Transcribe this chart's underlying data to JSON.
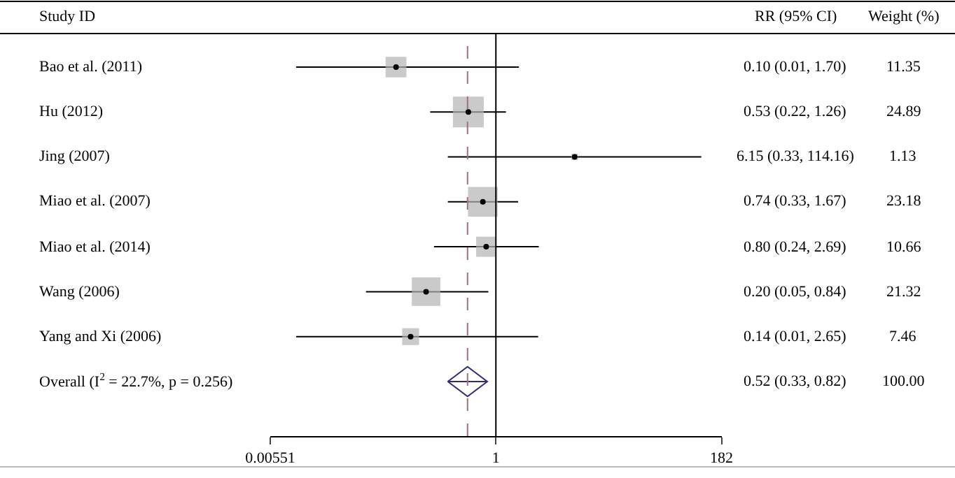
{
  "chart_data": {
    "type": "scatter",
    "orientation": "horizontal",
    "categories": [
      "Bao et al. (2011)",
      "Hu (2012)",
      "Jing (2007)",
      "Miao et al. (2007)",
      "Miao et al. (2014)",
      "Wang (2006)",
      "Yang and Xi (2006)",
      "Overall (I$^{2}$ = 22.7%, p = 0.256)"
    ],
    "annotations": [
      "Study ID",
      "RR (95% CI)",
      "Weight (%)",
      "0.10 (0.01, 1.70)",
      "0.53 (0.22, 1.26)",
      "6.15 (0.33, 114.16)",
      "0.74 (0.33, 1.67)",
      "0.80 (0.24, 2.69)",
      "0.20 (0.05, 0.84)",
      "0.14 (0.01, 2.65)",
      "0.52 (0.33, 0.82)",
      "11.35",
      "24.89",
      "1.13",
      "23.18",
      "10.66",
      "21.32",
      "7.46",
      "100.00"
    ],
    "xlim": [
      0.00551,
      182
    ],
    "xticks": [
      0.00551,
      1,
      182
    ],
    "log": "x",
    "ref_lines": [
      {
        "axis": "x",
        "value": 1,
        "color": "#000000",
        "line_style": "solid"
      },
      {
        "axis": "x",
        "value": 0.52,
        "color": "#a0707f",
        "line_style": "dashed"
      }
    ],
    "series": [
      {
        "marker": "square",
        "color": "#b3b3b3",
        "values": [
          0.1,
          0.53,
          6.15,
          0.74,
          0.8,
          0.2,
          0.14,
          null
        ],
        "errors": [
          [
            0.01,
            1.7
          ],
          [
            0.22,
            1.26
          ],
          [
            0.33,
            114.16
          ],
          [
            0.33,
            1.67
          ],
          [
            0.24,
            2.69
          ],
          [
            0.05,
            0.84
          ],
          [
            0.01,
            2.65
          ],
          null
        ],
        "sizes": [
          0.456,
          1,
          0.045,
          0.931,
          0.428,
          0.857,
          0.3,
          null
        ]
      },
      {
        "marker": "diamond",
        "color": "#2e2a78",
        "values": [
          null,
          null,
          null,
          null,
          null,
          null,
          null,
          0.52
        ],
        "errors": [
          null,
          null,
          null,
          null,
          null,
          null,
          null,
          [
            0.33,
            0.82
          ]
        ]
      }
    ]
  }
}
